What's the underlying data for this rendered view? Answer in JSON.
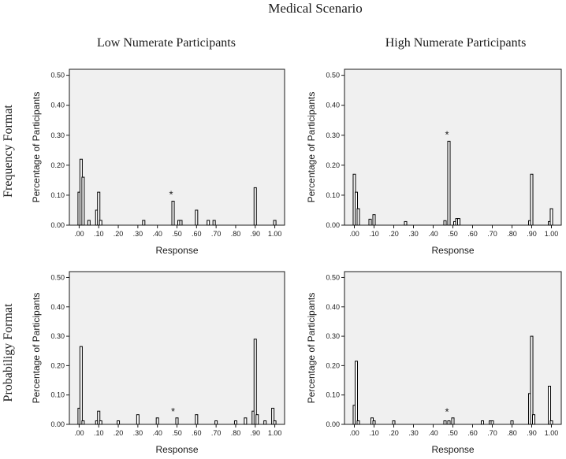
{
  "figure": {
    "title": "Medical Scenario",
    "column_labels": [
      "Low Numerate Participants",
      "High Numerate Participants"
    ],
    "row_labels": [
      "Frequency Format",
      "Probabiligy Format"
    ]
  },
  "chart_data": [
    {
      "type": "bar",
      "panel": "Frequency Format / Low Numerate Participants",
      "xlabel": "Response",
      "ylabel": "Percentage of Participants",
      "xlim": [
        -0.05,
        1.05
      ],
      "ylim": [
        0,
        0.52
      ],
      "xticks": [
        ".00",
        ".10",
        ".20",
        ".30",
        ".40",
        ".50",
        ".60",
        ".70",
        ".80",
        ".90",
        "1.00"
      ],
      "yticks": [
        "0.00",
        "0.10",
        "0.20",
        "0.30",
        "0.40",
        "0.50"
      ],
      "x": [
        0.0,
        0.01,
        0.02,
        0.05,
        0.09,
        0.1,
        0.11,
        0.33,
        0.48,
        0.51,
        0.52,
        0.6,
        0.66,
        0.69,
        0.9,
        1.0
      ],
      "values": [
        0.11,
        0.22,
        0.16,
        0.016,
        0.05,
        0.11,
        0.016,
        0.016,
        0.08,
        0.016,
        0.016,
        0.05,
        0.016,
        0.016,
        0.125,
        0.016
      ],
      "annotations": [
        {
          "text": "*",
          "x": 0.47,
          "y": 0.08
        }
      ]
    },
    {
      "type": "bar",
      "panel": "Frequency Format / High Numerate Participants",
      "xlabel": "Response",
      "ylabel": "Percentage of Participants",
      "xlim": [
        -0.05,
        1.05
      ],
      "ylim": [
        0,
        0.52
      ],
      "xticks": [
        ".00",
        ".10",
        ".20",
        ".30",
        ".40",
        ".50",
        ".60",
        ".70",
        ".80",
        ".90",
        "1.00"
      ],
      "yticks": [
        "0.00",
        "0.10",
        "0.20",
        "0.30",
        "0.40",
        "0.50"
      ],
      "x": [
        0.0,
        0.01,
        0.02,
        0.08,
        0.1,
        0.26,
        0.46,
        0.48,
        0.51,
        0.52,
        0.53,
        0.89,
        0.9,
        0.99,
        1.0
      ],
      "values": [
        0.17,
        0.11,
        0.055,
        0.02,
        0.035,
        0.012,
        0.015,
        0.28,
        0.012,
        0.022,
        0.022,
        0.015,
        0.17,
        0.012,
        0.055
      ],
      "annotations": [
        {
          "text": "*",
          "x": 0.47,
          "y": 0.28
        }
      ]
    },
    {
      "type": "bar",
      "panel": "Probabiligy Format / Low Numerate Participants",
      "xlabel": "Response",
      "ylabel": "Percentage of Participants",
      "xlim": [
        -0.05,
        1.05
      ],
      "ylim": [
        0,
        0.52
      ],
      "xticks": [
        ".00",
        ".10",
        ".20",
        ".30",
        ".40",
        ".50",
        ".60",
        ".70",
        ".80",
        ".90",
        "1.00"
      ],
      "yticks": [
        "0.00",
        "0.10",
        "0.20",
        "0.30",
        "0.40",
        "0.50"
      ],
      "x": [
        0.0,
        0.01,
        0.02,
        0.09,
        0.1,
        0.11,
        0.2,
        0.3,
        0.4,
        0.5,
        0.6,
        0.7,
        0.8,
        0.85,
        0.89,
        0.9,
        0.91,
        0.95,
        0.99,
        1.0
      ],
      "values": [
        0.055,
        0.265,
        0.012,
        0.012,
        0.045,
        0.012,
        0.012,
        0.033,
        0.022,
        0.022,
        0.033,
        0.012,
        0.012,
        0.022,
        0.045,
        0.29,
        0.033,
        0.012,
        0.055,
        0.012
      ],
      "annotations": [
        {
          "text": "*",
          "x": 0.48,
          "y": 0.022
        }
      ]
    },
    {
      "type": "bar",
      "panel": "Probabiligy Format / High Numerate Participants",
      "xlabel": "Response",
      "ylabel": "Percentage of Participants",
      "xlim": [
        -0.05,
        1.05
      ],
      "ylim": [
        0,
        0.52
      ],
      "xticks": [
        ".00",
        ".10",
        ".20",
        ".30",
        ".40",
        ".50",
        ".60",
        ".70",
        ".80",
        ".90",
        "1.00"
      ],
      "yticks": [
        "0.00",
        "0.10",
        "0.20",
        "0.30",
        "0.40",
        "0.50"
      ],
      "x": [
        0.0,
        0.01,
        0.02,
        0.09,
        0.1,
        0.2,
        0.46,
        0.48,
        0.5,
        0.65,
        0.69,
        0.7,
        0.8,
        0.89,
        0.9,
        0.91,
        0.99,
        1.0
      ],
      "values": [
        0.065,
        0.215,
        0.012,
        0.022,
        0.012,
        0.012,
        0.012,
        0.012,
        0.022,
        0.012,
        0.012,
        0.012,
        0.012,
        0.105,
        0.3,
        0.033,
        0.13,
        0.012
      ],
      "annotations": [
        {
          "text": "*",
          "x": 0.47,
          "y": 0.02
        }
      ]
    }
  ]
}
